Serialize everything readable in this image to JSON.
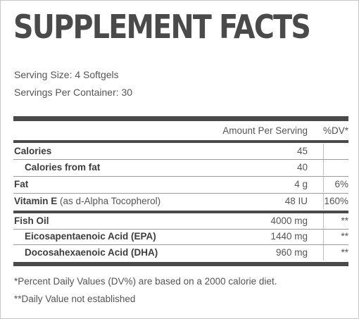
{
  "title": "SUPPLEMENT FACTS",
  "serving_size": "Serving Size: 4 Softgels",
  "servings_per_container": "Servings Per Container: 30",
  "header": {
    "amount": "Amount Per Serving",
    "dv": "%DV*"
  },
  "rows": [
    {
      "name": "Calories",
      "amount": "45",
      "dv": ""
    },
    {
      "name": "Calories from fat",
      "amount": "40",
      "dv": ""
    },
    {
      "name": "Fat",
      "amount": "4 g",
      "dv": "6%"
    },
    {
      "name": "Vitamin E",
      "sub": "(as d-Alpha Tocopherol)",
      "amount": "48 IU",
      "dv": "160%"
    },
    {
      "name": "Fish Oil",
      "amount": "4000 mg",
      "dv": "**"
    },
    {
      "name": "Eicosapentaenoic Acid (EPA)",
      "amount": "1440 mg",
      "dv": "**"
    },
    {
      "name": "Docosahexaenoic Acid (DHA)",
      "amount": "960 mg",
      "dv": "**"
    }
  ],
  "footnotes": [
    "*Percent Daily Values (DV%) are based on a 2000 calorie diet.",
    "**Daily Value not established"
  ]
}
